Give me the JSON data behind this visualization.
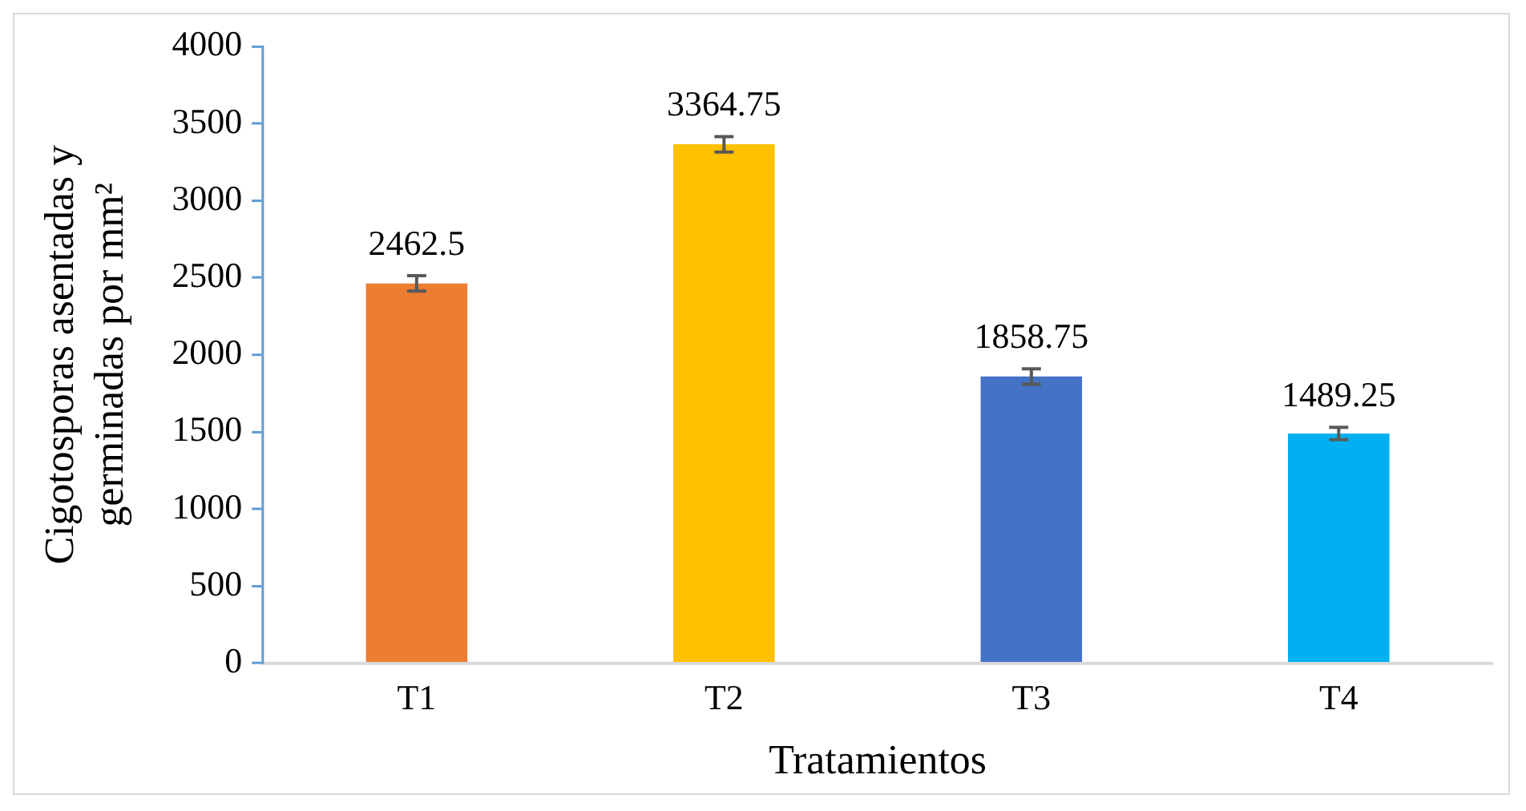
{
  "chart_data": {
    "type": "bar",
    "xlabel": "Tratamientos",
    "ylabel": "Cigotosporas asentadas y germinadas por mm²",
    "categories": [
      "T1",
      "T2",
      "T3",
      "T4"
    ],
    "values": [
      2462.5,
      3364.75,
      1858.75,
      1489.25
    ],
    "colors": [
      "#ed7d31",
      "#ffc000",
      "#4472c4",
      "#00b0f0"
    ],
    "errors": [
      50,
      50,
      50,
      40
    ],
    "ylim": [
      0,
      4000
    ],
    "yticks": [
      0,
      500,
      1000,
      1500,
      2000,
      2500,
      3000,
      3500,
      4000
    ],
    "data_labels": true,
    "grid": false,
    "legend": false
  }
}
